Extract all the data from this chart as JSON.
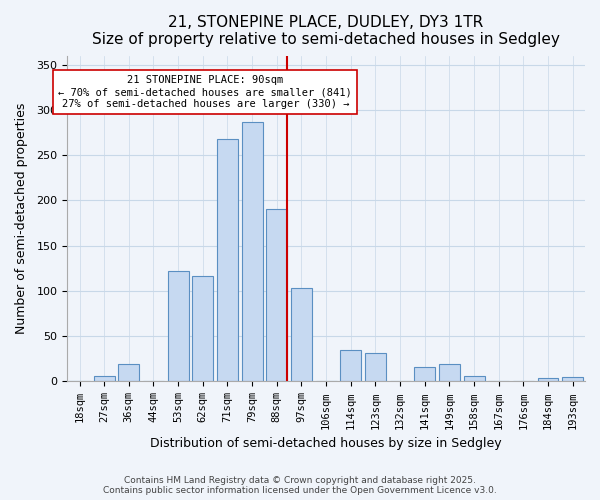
{
  "title": "21, STONEPINE PLACE, DUDLEY, DY3 1TR",
  "subtitle": "Size of property relative to semi-detached houses in Sedgley",
  "xlabel": "Distribution of semi-detached houses by size in Sedgley",
  "ylabel": "Number of semi-detached properties",
  "bin_labels": [
    "18sqm",
    "27sqm",
    "36sqm",
    "44sqm",
    "53sqm",
    "62sqm",
    "71sqm",
    "79sqm",
    "88sqm",
    "97sqm",
    "106sqm",
    "114sqm",
    "123sqm",
    "132sqm",
    "141sqm",
    "149sqm",
    "158sqm",
    "167sqm",
    "176sqm",
    "184sqm",
    "193sqm"
  ],
  "bar_values": [
    0,
    6,
    19,
    0,
    122,
    116,
    268,
    287,
    190,
    103,
    0,
    35,
    31,
    0,
    16,
    19,
    6,
    0,
    0,
    4,
    5
  ],
  "bar_color": "#c6d9f1",
  "bar_edge_color": "#5a8fc2",
  "vline_x": 8,
  "vline_color": "#cc0000",
  "annotation_title": "21 STONEPINE PLACE: 90sqm",
  "annotation_line1": "← 70% of semi-detached houses are smaller (841)",
  "annotation_line2": "27% of semi-detached houses are larger (330) →",
  "annotation_box_color": "#ffffff",
  "annotation_box_edge": "#cc0000",
  "ylim": [
    0,
    360
  ],
  "yticks": [
    0,
    50,
    100,
    150,
    200,
    250,
    300,
    350
  ],
  "footer_line1": "Contains HM Land Registry data © Crown copyright and database right 2025.",
  "footer_line2": "Contains public sector information licensed under the Open Government Licence v3.0.",
  "bg_color": "#f0f4fa",
  "grid_color": "#c8d8e8"
}
